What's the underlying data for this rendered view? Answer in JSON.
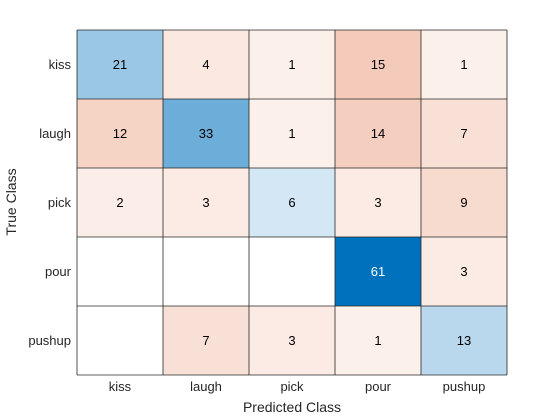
{
  "chart_data": {
    "type": "heatmap",
    "title": "",
    "xlabel": "Predicted Class",
    "ylabel": "True Class",
    "x_categories": [
      "kiss",
      "laugh",
      "pick",
      "pour",
      "pushup"
    ],
    "y_categories": [
      "kiss",
      "laugh",
      "pick",
      "pour",
      "pushup"
    ],
    "values": [
      [
        21,
        4,
        1,
        15,
        1
      ],
      [
        12,
        33,
        1,
        14,
        7
      ],
      [
        2,
        3,
        6,
        3,
        9
      ],
      [
        0,
        0,
        0,
        61,
        3
      ],
      [
        0,
        7,
        3,
        1,
        13
      ]
    ],
    "hide_zero_cells": true,
    "grid": true,
    "colors": {
      "diagonal": "#0072bd",
      "off_diagonal": "#d95319",
      "grid_line": "#262626",
      "light_text": "#ffffff",
      "dark_text": "#000000"
    }
  }
}
